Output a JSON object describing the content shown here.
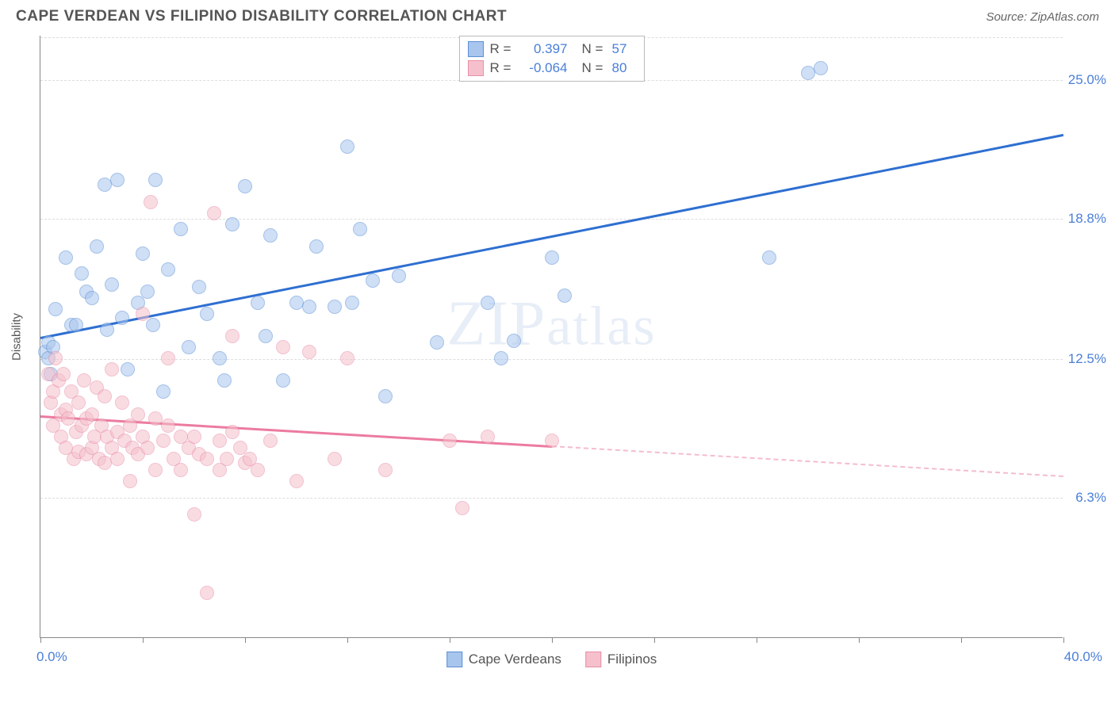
{
  "header": {
    "title": "CAPE VERDEAN VS FILIPINO DISABILITY CORRELATION CHART",
    "source": "Source: ZipAtlas.com"
  },
  "chart": {
    "type": "scatter",
    "ylabel": "Disability",
    "xlim": [
      0,
      40
    ],
    "ylim": [
      0,
      27
    ],
    "xtick_positions": [
      0,
      4,
      8,
      12,
      16,
      20,
      24,
      28,
      32,
      36,
      40
    ],
    "ytick_labels": [
      {
        "v": 6.3,
        "label": "6.3%"
      },
      {
        "v": 12.5,
        "label": "12.5%"
      },
      {
        "v": 18.8,
        "label": "18.8%"
      },
      {
        "v": 25.0,
        "label": "25.0%"
      }
    ],
    "xtick_left": "0.0%",
    "xtick_right": "40.0%",
    "background_color": "#ffffff",
    "grid_color": "#dddddd",
    "marker_radius": 9,
    "marker_opacity": 0.55,
    "series": [
      {
        "name": "Cape Verdeans",
        "color_fill": "#a8c5ed",
        "color_stroke": "#5b8fd6",
        "r": "0.397",
        "n": "57",
        "trend": {
          "x1": 0,
          "y1": 13.5,
          "x2": 40,
          "y2": 22.6,
          "color": "#2e6fd1",
          "solid_end_x": 40
        },
        "points": [
          [
            0.2,
            12.8
          ],
          [
            0.3,
            13.2
          ],
          [
            0.3,
            12.5
          ],
          [
            0.4,
            11.8
          ],
          [
            0.5,
            13.0
          ],
          [
            0.6,
            14.7
          ],
          [
            1.0,
            17.0
          ],
          [
            1.2,
            14.0
          ],
          [
            1.4,
            14.0
          ],
          [
            1.6,
            16.3
          ],
          [
            1.8,
            15.5
          ],
          [
            2.0,
            15.2
          ],
          [
            2.2,
            17.5
          ],
          [
            2.5,
            20.3
          ],
          [
            2.6,
            13.8
          ],
          [
            2.8,
            15.8
          ],
          [
            3.0,
            20.5
          ],
          [
            3.2,
            14.3
          ],
          [
            3.4,
            12.0
          ],
          [
            3.8,
            15.0
          ],
          [
            4.0,
            17.2
          ],
          [
            4.2,
            15.5
          ],
          [
            4.4,
            14.0
          ],
          [
            4.5,
            20.5
          ],
          [
            4.8,
            11.0
          ],
          [
            5.0,
            16.5
          ],
          [
            5.5,
            18.3
          ],
          [
            5.8,
            13.0
          ],
          [
            6.2,
            15.7
          ],
          [
            6.5,
            14.5
          ],
          [
            7.0,
            12.5
          ],
          [
            7.2,
            11.5
          ],
          [
            7.5,
            18.5
          ],
          [
            8.0,
            20.2
          ],
          [
            8.5,
            15.0
          ],
          [
            8.8,
            13.5
          ],
          [
            9.0,
            18.0
          ],
          [
            9.5,
            11.5
          ],
          [
            10.0,
            15.0
          ],
          [
            10.5,
            14.8
          ],
          [
            10.8,
            17.5
          ],
          [
            11.5,
            14.8
          ],
          [
            12.0,
            22.0
          ],
          [
            12.2,
            15.0
          ],
          [
            12.5,
            18.3
          ],
          [
            13.0,
            16.0
          ],
          [
            13.5,
            10.8
          ],
          [
            14.0,
            16.2
          ],
          [
            15.5,
            13.2
          ],
          [
            17.5,
            15.0
          ],
          [
            18.0,
            12.5
          ],
          [
            18.5,
            13.3
          ],
          [
            20.0,
            17.0
          ],
          [
            20.5,
            15.3
          ],
          [
            28.5,
            17.0
          ],
          [
            30.5,
            25.5
          ],
          [
            30.0,
            25.3
          ]
        ]
      },
      {
        "name": "Filipinos",
        "color_fill": "#f5c0cc",
        "color_stroke": "#e88fa8",
        "r": "-0.064",
        "n": "80",
        "trend": {
          "x1": 0,
          "y1": 10.0,
          "x2": 40,
          "y2": 7.3,
          "color": "#ec7ba0",
          "solid_end_x": 20
        },
        "points": [
          [
            0.3,
            11.8
          ],
          [
            0.4,
            10.5
          ],
          [
            0.5,
            11.0
          ],
          [
            0.5,
            9.5
          ],
          [
            0.6,
            12.5
          ],
          [
            0.7,
            11.5
          ],
          [
            0.8,
            10.0
          ],
          [
            0.8,
            9.0
          ],
          [
            0.9,
            11.8
          ],
          [
            1.0,
            10.2
          ],
          [
            1.0,
            8.5
          ],
          [
            1.1,
            9.8
          ],
          [
            1.2,
            11.0
          ],
          [
            1.3,
            8.0
          ],
          [
            1.4,
            9.2
          ],
          [
            1.5,
            10.5
          ],
          [
            1.5,
            8.3
          ],
          [
            1.6,
            9.5
          ],
          [
            1.7,
            11.5
          ],
          [
            1.8,
            8.2
          ],
          [
            1.8,
            9.8
          ],
          [
            2.0,
            8.5
          ],
          [
            2.0,
            10.0
          ],
          [
            2.1,
            9.0
          ],
          [
            2.2,
            11.2
          ],
          [
            2.3,
            8.0
          ],
          [
            2.4,
            9.5
          ],
          [
            2.5,
            10.8
          ],
          [
            2.5,
            7.8
          ],
          [
            2.6,
            9.0
          ],
          [
            2.8,
            8.5
          ],
          [
            2.8,
            12.0
          ],
          [
            3.0,
            9.2
          ],
          [
            3.0,
            8.0
          ],
          [
            3.2,
            10.5
          ],
          [
            3.3,
            8.8
          ],
          [
            3.5,
            9.5
          ],
          [
            3.5,
            7.0
          ],
          [
            3.6,
            8.5
          ],
          [
            3.8,
            10.0
          ],
          [
            3.8,
            8.2
          ],
          [
            4.0,
            9.0
          ],
          [
            4.0,
            14.5
          ],
          [
            4.2,
            8.5
          ],
          [
            4.3,
            19.5
          ],
          [
            4.5,
            9.8
          ],
          [
            4.5,
            7.5
          ],
          [
            4.8,
            8.8
          ],
          [
            5.0,
            9.5
          ],
          [
            5.0,
            12.5
          ],
          [
            5.2,
            8.0
          ],
          [
            5.5,
            9.0
          ],
          [
            5.5,
            7.5
          ],
          [
            5.8,
            8.5
          ],
          [
            6.0,
            5.5
          ],
          [
            6.0,
            9.0
          ],
          [
            6.2,
            8.2
          ],
          [
            6.5,
            8.0
          ],
          [
            6.5,
            2.0
          ],
          [
            6.8,
            19.0
          ],
          [
            7.0,
            8.8
          ],
          [
            7.0,
            7.5
          ],
          [
            7.3,
            8.0
          ],
          [
            7.5,
            9.2
          ],
          [
            7.5,
            13.5
          ],
          [
            7.8,
            8.5
          ],
          [
            8.0,
            7.8
          ],
          [
            8.2,
            8.0
          ],
          [
            8.5,
            7.5
          ],
          [
            9.0,
            8.8
          ],
          [
            9.5,
            13.0
          ],
          [
            10.0,
            7.0
          ],
          [
            10.5,
            12.8
          ],
          [
            11.5,
            8.0
          ],
          [
            12.0,
            12.5
          ],
          [
            13.5,
            7.5
          ],
          [
            16.0,
            8.8
          ],
          [
            16.5,
            5.8
          ],
          [
            17.5,
            9.0
          ],
          [
            20.0,
            8.8
          ]
        ]
      }
    ],
    "watermark": {
      "part1": "ZIP",
      "part2": "atlas"
    }
  },
  "legend_bottom": [
    {
      "label": "Cape Verdeans",
      "fill": "#a8c5ed",
      "stroke": "#5b8fd6"
    },
    {
      "label": "Filipinos",
      "fill": "#f5c0cc",
      "stroke": "#e88fa8"
    }
  ]
}
